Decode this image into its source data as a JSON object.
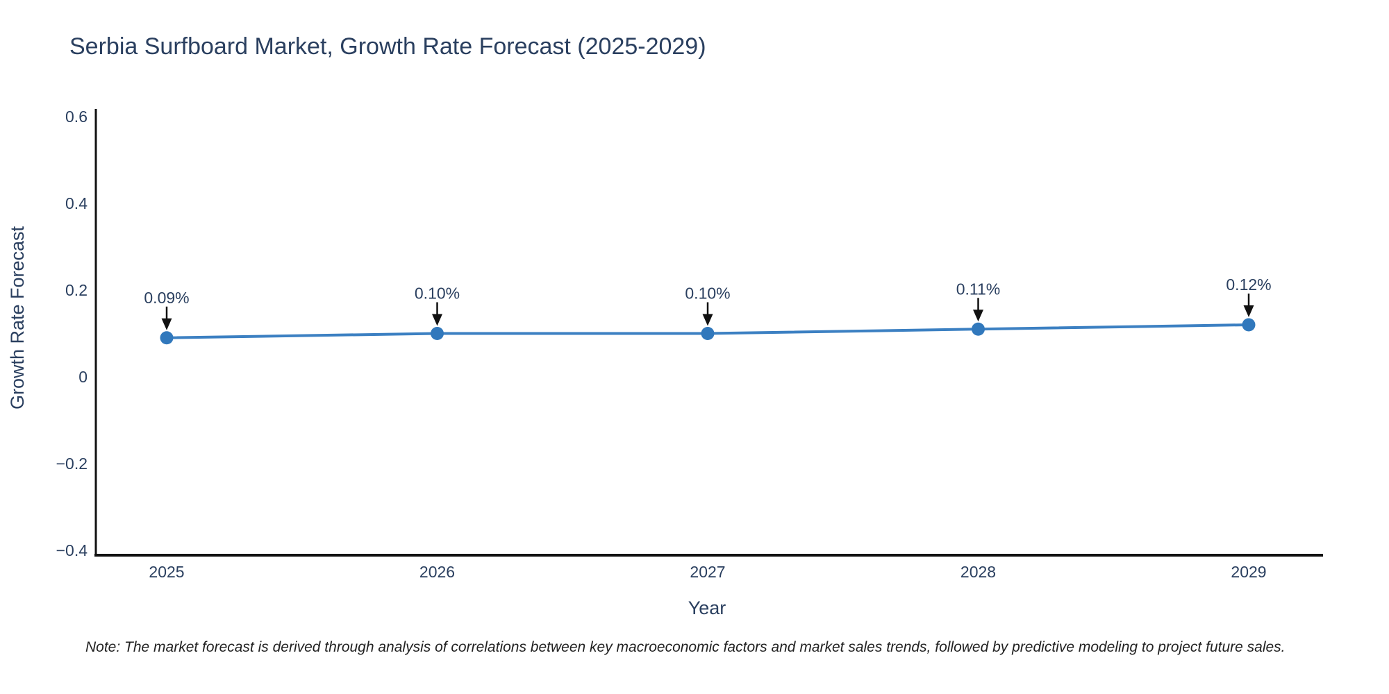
{
  "page": {
    "background": "#ffffff"
  },
  "chart_data": {
    "type": "line",
    "title": "Serbia Surfboard Market, Growth Rate Forecast (2025-2029)",
    "xlabel": "Year",
    "ylabel": "Growth Rate Forecast",
    "x": [
      2025,
      2026,
      2027,
      2028,
      2029
    ],
    "y": [
      0.09,
      0.1,
      0.1,
      0.11,
      0.12
    ],
    "point_labels": [
      "0.09%",
      "0.10%",
      "0.10%",
      "0.11%",
      "0.12%"
    ],
    "ylim": [
      -0.4,
      0.6
    ],
    "yticks": [
      0.6,
      0.4,
      0.2,
      0,
      -0.2,
      -0.4
    ],
    "ytick_labels": [
      "0.6",
      "0.4",
      "0.2",
      "0",
      "−0.2",
      "−0.4"
    ],
    "xtick_labels": [
      "2025",
      "2026",
      "2027",
      "2028",
      "2029"
    ],
    "grid": false,
    "legend": false,
    "annotations_have_arrows": true,
    "colors": {
      "line": "#3c80c2",
      "marker": "#3178bc",
      "axis": "#111111",
      "text": "#2a3f5f",
      "arrow": "#111111",
      "note_text": "#222222"
    }
  },
  "note": "Note: The market forecast is derived through analysis of correlations between key macroeconomic factors and market sales trends, followed by predictive modeling to project future sales."
}
